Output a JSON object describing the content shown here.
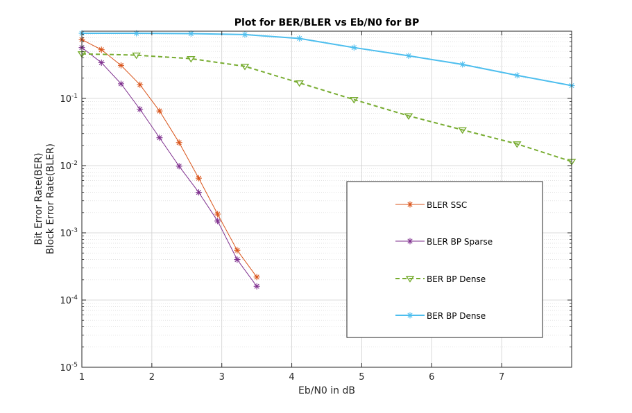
{
  "chart_data": {
    "type": "line",
    "title": "Plot for BER/BLER vs Eb/N0 for BP",
    "xlabel": "Eb/N0 in dB",
    "ylabel": [
      "Bit Error Rate(BER)",
      "Block Error Rate(BLER)"
    ],
    "xlim": [
      1,
      8
    ],
    "ylim": [
      1e-05,
      1
    ],
    "yscale": "log",
    "grid": true,
    "legend_position": "lower-right",
    "x_ticks": [
      {
        "value": 1,
        "label": "1"
      },
      {
        "value": 2,
        "label": "2"
      },
      {
        "value": 3,
        "label": "3"
      },
      {
        "value": 4,
        "label": "4"
      },
      {
        "value": 5,
        "label": "5"
      },
      {
        "value": 6,
        "label": "6"
      },
      {
        "value": 7,
        "label": "7"
      }
    ],
    "y_ticks": [
      {
        "value": 0.1,
        "base": "10",
        "exp": "-1"
      },
      {
        "value": 0.01,
        "base": "10",
        "exp": "-2"
      },
      {
        "value": 0.001,
        "base": "10",
        "exp": "-3"
      },
      {
        "value": 0.0001,
        "base": "10",
        "exp": "-4"
      },
      {
        "value": 1e-05,
        "base": "10",
        "exp": "-5"
      }
    ],
    "series": [
      {
        "name": "BLER SSC",
        "color": "#d95319",
        "marker": "star",
        "dashed": false,
        "width": 1,
        "x": [
          1,
          1.28,
          1.56,
          1.83,
          2.11,
          2.39,
          2.67,
          2.94,
          3.22,
          3.5
        ],
        "y": [
          0.75,
          0.53,
          0.31,
          0.16,
          0.065,
          0.022,
          0.0065,
          0.0019,
          0.00055,
          0.00022
        ]
      },
      {
        "name": "BLER BP Sparse",
        "color": "#7e2f8e",
        "marker": "star",
        "dashed": false,
        "width": 1,
        "x": [
          1,
          1.28,
          1.56,
          1.83,
          2.11,
          2.39,
          2.67,
          2.94,
          3.22,
          3.5
        ],
        "y": [
          0.57,
          0.34,
          0.165,
          0.069,
          0.026,
          0.0098,
          0.004,
          0.0015,
          0.0004,
          0.00016
        ]
      },
      {
        "name": "BER BP Dense",
        "color": "#77ac30",
        "marker": "triangle-down",
        "dashed": true,
        "width": 2,
        "x": [
          1,
          1.78,
          2.56,
          3.33,
          4.11,
          4.89,
          5.67,
          6.44,
          7.22,
          8
        ],
        "y": [
          0.46,
          0.44,
          0.39,
          0.3,
          0.17,
          0.096,
          0.055,
          0.034,
          0.021,
          0.0115
        ]
      },
      {
        "name": "BER BP Dense",
        "color": "#4dbeee",
        "marker": "star",
        "dashed": false,
        "width": 2,
        "x": [
          1,
          1.78,
          2.56,
          3.33,
          4.11,
          4.89,
          5.67,
          6.44,
          7.22,
          8
        ],
        "y": [
          0.93,
          0.93,
          0.92,
          0.89,
          0.78,
          0.57,
          0.43,
          0.32,
          0.22,
          0.155
        ]
      }
    ]
  }
}
